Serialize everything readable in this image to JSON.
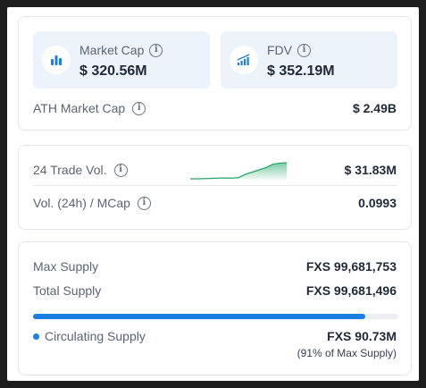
{
  "market": {
    "market_cap": {
      "label": "Market Cap",
      "value": "$ 320.56M",
      "icon": "bar-chart-icon"
    },
    "fdv": {
      "label": "FDV",
      "value": "$ 352.19M",
      "icon": "trend-chart-icon"
    },
    "ath": {
      "label": "ATH Market Cap",
      "value": "$ 2.49B"
    }
  },
  "volume": {
    "trade_vol": {
      "label": "24 Trade Vol.",
      "value": "$ 31.83M"
    },
    "vol_mcap": {
      "label": "Vol. (24h) / MCap",
      "value": "0.0993"
    },
    "sparkline": [
      2,
      2,
      2.1,
      2.2,
      2.3,
      2.4,
      2.3,
      2.5,
      4,
      5,
      6,
      7,
      8.5,
      9,
      9.2
    ],
    "sparkline_color": "#27a96b"
  },
  "supply": {
    "max": {
      "label": "Max Supply",
      "value": "FXS 99,681,753"
    },
    "total": {
      "label": "Total Supply",
      "value": "FXS 99,681,496"
    },
    "circulating": {
      "label": "Circulating Supply",
      "value": "FXS 90.73M",
      "note": "(91% of Max Supply)"
    },
    "progress_fraction": 0.91,
    "accent": "#1a7fe0"
  },
  "info_glyph": "i"
}
